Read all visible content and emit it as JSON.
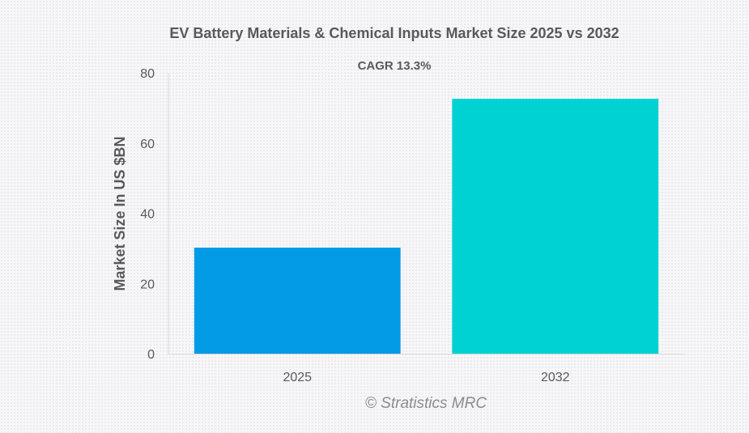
{
  "chart_data": {
    "type": "bar",
    "title": "EV Battery Materials & Chemical Inputs Market Size 2025 vs 2032",
    "subtitle": "CAGR 13.3%",
    "xlabel": "",
    "ylabel": "Market Size In US $BN",
    "categories": [
      "2025",
      "2032"
    ],
    "values": [
      30.2,
      72.6
    ],
    "colors": [
      "#039be5",
      "#00d2d3"
    ],
    "ylim": [
      0,
      80
    ],
    "yticks": [
      0,
      20,
      40,
      60,
      80
    ],
    "grid": false,
    "legend": "none",
    "watermark": "© Stratistics MRC"
  }
}
